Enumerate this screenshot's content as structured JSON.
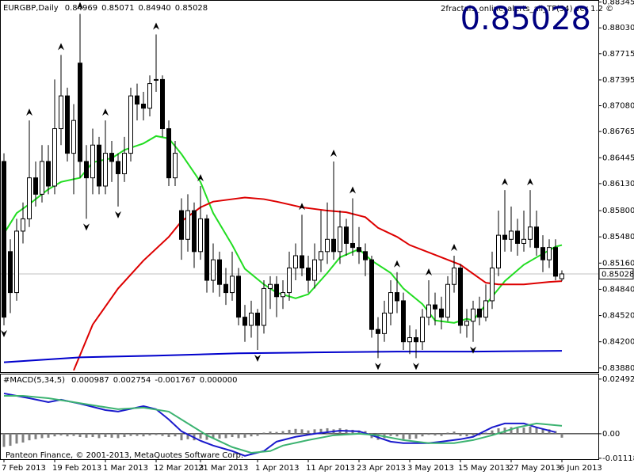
{
  "chart_data": [
    {
      "type": "candlestick",
      "title": "EURGBP,Daily",
      "header_values": [
        "0.84969",
        "0.85071",
        "0.84940",
        "0.85028"
      ],
      "indicator": "2fractals_online_alerts_all_TF(54) ver 1.2 ©",
      "current_price": 0.85028,
      "ylim": [
        0.8383,
        0.8837
      ],
      "yticks": [
        0.88345,
        {
          "value": 0.8803,
          "label": "0.88030"
        },
        0.87715,
        0.87395,
        {
          "value": 0.8708,
          "label": "0.87080"
        },
        0.86765,
        0.86445,
        {
          "value": 0.8613,
          "label": "0.86130"
        },
        {
          "value": 0.858,
          "label": "0.85800"
        },
        {
          "value": 0.8548,
          "label": "0.85480"
        },
        {
          "value": 0.8516,
          "label": "0.85160"
        },
        {
          "value": 0.8484,
          "label": "0.84840"
        },
        {
          "value": 0.8452,
          "label": "0.84520"
        },
        {
          "value": 0.842,
          "label": "0.84200"
        },
        {
          "value": 0.8388,
          "label": "0.83880"
        }
      ],
      "candles": [
        [
          0.864,
          0.865,
          0.844,
          0.845
        ],
        [
          0.853,
          0.8545,
          0.8455,
          0.848
        ],
        [
          0.848,
          0.857,
          0.847,
          0.8555
        ],
        [
          0.8555,
          0.859,
          0.854,
          0.857
        ],
        [
          0.857,
          0.869,
          0.856,
          0.862
        ],
        [
          0.862,
          0.864,
          0.8585,
          0.86
        ],
        [
          0.86,
          0.866,
          0.859,
          0.864
        ],
        [
          0.864,
          0.866,
          0.86,
          0.861
        ],
        [
          0.861,
          0.874,
          0.86,
          0.868
        ],
        [
          0.868,
          0.877,
          0.866,
          0.872
        ],
        [
          0.872,
          0.873,
          0.864,
          0.865
        ],
        [
          0.865,
          0.871,
          0.86,
          0.869
        ],
        [
          0.876,
          0.882,
          0.862,
          0.864
        ],
        [
          0.864,
          0.866,
          0.857,
          0.862
        ],
        [
          0.862,
          0.868,
          0.86,
          0.866
        ],
        [
          0.866,
          0.867,
          0.86,
          0.861
        ],
        [
          0.861,
          0.869,
          0.86,
          0.865
        ],
        [
          0.865,
          0.8665,
          0.8615,
          0.864
        ],
        [
          0.864,
          0.865,
          0.8585,
          0.8625
        ],
        [
          0.8625,
          0.867,
          0.8615,
          0.865
        ],
        [
          0.865,
          0.873,
          0.864,
          0.872
        ],
        [
          0.872,
          0.8735,
          0.869,
          0.871
        ],
        [
          0.871,
          0.8725,
          0.869,
          0.8705
        ],
        [
          0.8705,
          0.8745,
          0.8695,
          0.8735
        ],
        [
          0.874,
          0.8795,
          0.8725,
          0.874
        ],
        [
          0.874,
          0.8745,
          0.867,
          0.868
        ],
        [
          0.868,
          0.869,
          0.861,
          0.862
        ],
        [
          0.862,
          0.8665,
          0.861,
          0.865
        ],
        [
          0.858,
          0.8595,
          0.852,
          0.8545
        ],
        [
          0.8545,
          0.86,
          0.853,
          0.858
        ],
        [
          0.858,
          0.859,
          0.851,
          0.853
        ],
        [
          0.853,
          0.861,
          0.852,
          0.857
        ],
        [
          0.857,
          0.8575,
          0.848,
          0.8495
        ],
        [
          0.8495,
          0.854,
          0.848,
          0.852
        ],
        [
          0.852,
          0.853,
          0.8475,
          0.849
        ],
        [
          0.849,
          0.851,
          0.8465,
          0.848
        ],
        [
          0.848,
          0.853,
          0.847,
          0.85
        ],
        [
          0.85,
          0.851,
          0.844,
          0.845
        ],
        [
          0.845,
          0.8465,
          0.842,
          0.844
        ],
        [
          0.844,
          0.847,
          0.8425,
          0.8455
        ],
        [
          0.8455,
          0.846,
          0.841,
          0.844
        ],
        [
          0.844,
          0.8495,
          0.843,
          0.8485
        ],
        [
          0.8485,
          0.85,
          0.846,
          0.849
        ],
        [
          0.849,
          0.85,
          0.845,
          0.8475
        ],
        [
          0.8475,
          0.8495,
          0.846,
          0.848
        ],
        [
          0.848,
          0.853,
          0.847,
          0.851
        ],
        [
          0.851,
          0.854,
          0.8495,
          0.8525
        ],
        [
          0.8525,
          0.8575,
          0.85,
          0.851
        ],
        [
          0.851,
          0.8525,
          0.848,
          0.8495
        ],
        [
          0.8495,
          0.854,
          0.8485,
          0.852
        ],
        [
          0.852,
          0.858,
          0.8505,
          0.853
        ],
        [
          0.853,
          0.859,
          0.8515,
          0.8545
        ],
        [
          0.8545,
          0.864,
          0.852,
          0.853
        ],
        [
          0.853,
          0.858,
          0.8515,
          0.856
        ],
        [
          0.856,
          0.857,
          0.8525,
          0.854
        ],
        [
          0.854,
          0.8595,
          0.8525,
          0.8535
        ],
        [
          0.8535,
          0.856,
          0.8515,
          0.853
        ],
        [
          0.853,
          0.854,
          0.85,
          0.852
        ],
        [
          0.852,
          0.8525,
          0.8425,
          0.8435
        ],
        [
          0.8435,
          0.845,
          0.84,
          0.843
        ],
        [
          0.843,
          0.847,
          0.842,
          0.8455
        ],
        [
          0.8455,
          0.8495,
          0.844,
          0.848
        ],
        [
          0.848,
          0.8505,
          0.8455,
          0.847
        ],
        [
          0.847,
          0.848,
          0.841,
          0.842
        ],
        [
          0.842,
          0.844,
          0.8405,
          0.8425
        ],
        [
          0.8425,
          0.8435,
          0.84,
          0.842
        ],
        [
          0.842,
          0.846,
          0.841,
          0.845
        ],
        [
          0.845,
          0.8495,
          0.844,
          0.8465
        ],
        [
          0.8465,
          0.848,
          0.844,
          0.846
        ],
        [
          0.846,
          0.8475,
          0.8435,
          0.845
        ],
        [
          0.845,
          0.85,
          0.8445,
          0.849
        ],
        [
          0.849,
          0.8525,
          0.848,
          0.851
        ],
        [
          0.851,
          0.8515,
          0.843,
          0.844
        ],
        [
          0.844,
          0.846,
          0.8425,
          0.8445
        ],
        [
          0.8445,
          0.847,
          0.842,
          0.846
        ],
        [
          0.846,
          0.8475,
          0.844,
          0.845
        ],
        [
          0.845,
          0.849,
          0.8445,
          0.847
        ],
        [
          0.847,
          0.853,
          0.846,
          0.851
        ],
        [
          0.851,
          0.858,
          0.85,
          0.855
        ],
        [
          0.855,
          0.8605,
          0.853,
          0.8545
        ],
        [
          0.8545,
          0.8585,
          0.853,
          0.8555
        ],
        [
          0.8555,
          0.857,
          0.8525,
          0.854
        ],
        [
          0.854,
          0.858,
          0.853,
          0.8545
        ],
        [
          0.8545,
          0.8605,
          0.8535,
          0.856
        ],
        [
          0.856,
          0.858,
          0.8525,
          0.8535
        ],
        [
          0.8535,
          0.855,
          0.8505,
          0.852
        ],
        [
          0.852,
          0.8545,
          0.851,
          0.8535
        ],
        [
          0.8535,
          0.8545,
          0.8495,
          0.85
        ],
        [
          0.84969,
          0.85071,
          0.8494,
          0.85028
        ]
      ],
      "fractals_up": [
        4,
        9,
        12,
        16,
        24,
        31,
        47,
        52,
        55,
        62,
        67,
        71,
        79,
        83
      ],
      "fractals_down": [
        0,
        13,
        18,
        40,
        59,
        65,
        74
      ],
      "series": [
        {
          "color": "#22dd22",
          "x": [
            0,
            2,
            4,
            7,
            9,
            12,
            14,
            17,
            19,
            22,
            24,
            26,
            28,
            31,
            33,
            36,
            38,
            41,
            43,
            46,
            48,
            51,
            53,
            56,
            58,
            61,
            63,
            66,
            68,
            71,
            73,
            74,
            77,
            79,
            82,
            84,
            87,
            88
          ],
          "values": [
            0.8552,
            0.8577,
            0.8588,
            0.8606,
            0.8615,
            0.862,
            0.8639,
            0.8644,
            0.8654,
            0.8662,
            0.8671,
            0.8668,
            0.8649,
            0.8615,
            0.8577,
            0.8538,
            0.8509,
            0.849,
            0.848,
            0.8473,
            0.8478,
            0.8504,
            0.8523,
            0.8533,
            0.8519,
            0.8504,
            0.8485,
            0.8466,
            0.8446,
            0.8443,
            0.8448,
            0.8446,
            0.8475,
            0.8494,
            0.8514,
            0.8523,
            0.8536,
            0.8538
          ]
        },
        {
          "color": "#dd0000",
          "x": [
            11,
            14,
            18,
            22,
            26,
            28,
            31,
            33,
            36,
            38,
            41,
            43,
            47,
            51,
            54,
            57,
            59,
            62,
            64,
            68,
            72,
            76,
            78,
            82,
            86,
            88
          ],
          "values": [
            0.8385,
            0.8441,
            0.8485,
            0.8519,
            0.8548,
            0.8567,
            0.8584,
            0.8591,
            0.8594,
            0.8596,
            0.8594,
            0.8591,
            0.8584,
            0.858,
            0.8578,
            0.8572,
            0.8559,
            0.8548,
            0.8538,
            0.8526,
            0.8514,
            0.8492,
            0.849,
            0.849,
            0.8493,
            0.8494
          ]
        },
        {
          "color": "#0000cc",
          "x": [
            0,
            12,
            24,
            37,
            49,
            62,
            74,
            88
          ],
          "values": [
            0.8395,
            0.8401,
            0.8403,
            0.8406,
            0.8407,
            0.8408,
            0.8408,
            0.8409
          ]
        }
      ]
    },
    {
      "type": "macd",
      "title": "#MACD(5,34,5)",
      "header_values": [
        "0.000987",
        "0.002754",
        "-0.001767",
        "0.000000"
      ],
      "footer": "Panteon Finance, © 2001-2013, MetaQuotes Software Corp.",
      "ylim": [
        -0.0116,
        0.0274
      ],
      "yticks": [
        0.024923,
        {
          "value": 0,
          "label": "0.00"
        },
        -0.01118
      ],
      "histogram": {
        "color": "#808080",
        "values": [
          -0.006,
          -0.0055,
          -0.0045,
          -0.004,
          -0.003,
          -0.0025,
          -0.002,
          -0.0018,
          -0.0012,
          -0.0008,
          -0.0012,
          -0.001,
          -0.0015,
          -0.0018,
          -0.0015,
          -0.002,
          -0.0015,
          -0.0018,
          -0.002,
          -0.0015,
          -0.001,
          -0.001,
          -0.0012,
          -0.0008,
          -0.0006,
          -0.001,
          -0.0015,
          -0.0012,
          -0.003,
          -0.0025,
          -0.003,
          -0.0022,
          -0.0028,
          -0.002,
          -0.0022,
          -0.002,
          -0.0015,
          -0.002,
          -0.0018,
          -0.0012,
          -0.001,
          0.0005,
          0.001,
          0.0008,
          0.0012,
          0.0018,
          0.0022,
          0.002,
          0.0015,
          0.002,
          0.0022,
          0.0025,
          0.002,
          0.0025,
          0.002,
          0.0018,
          0.0015,
          0.0012,
          -0.002,
          -0.0028,
          -0.002,
          -0.001,
          -0.0012,
          -0.0025,
          -0.0025,
          -0.0022,
          -0.0012,
          -0.0005,
          -0.0008,
          -0.001,
          0.0005,
          0.001,
          -0.001,
          -0.0012,
          -0.0008,
          -0.0008,
          0.0005,
          0.0015,
          0.0025,
          0.0028,
          0.003,
          0.0025,
          0.0028,
          0.0032,
          0.0028,
          0.0022,
          0.002,
          0.0012,
          -0.0018
        ]
      },
      "series": [
        {
          "color": "#1a1acc",
          "x": [
            0,
            2,
            4,
            7,
            9,
            12,
            16,
            18,
            22,
            24,
            26,
            28,
            31,
            33,
            36,
            38,
            41,
            43,
            46,
            49,
            53,
            56,
            58,
            61,
            63,
            67,
            69,
            72,
            74,
            77,
            79,
            82,
            84,
            87
          ],
          "values": [
            0.0184,
            0.0173,
            0.0162,
            0.0144,
            0.0155,
            0.0137,
            0.0108,
            0.0101,
            0.0126,
            0.0112,
            0.0065,
            0.0011,
            -0.0032,
            -0.0054,
            -0.0079,
            -0.0101,
            -0.0079,
            -0.0036,
            -0.0014,
            0,
            0.0014,
            0.0011,
            -0.0007,
            -0.0036,
            -0.0043,
            -0.0043,
            -0.0036,
            -0.0025,
            -0.0014,
            0.0029,
            0.0047,
            0.0047,
            0.0029,
            0.0007
          ]
        },
        {
          "color": "#3cb371",
          "x": [
            0,
            3,
            7,
            11,
            14,
            18,
            22,
            26,
            29,
            32,
            36,
            39,
            42,
            44,
            48,
            52,
            56,
            59,
            63,
            67,
            71,
            74,
            77,
            81,
            84,
            88
          ],
          "values": [
            0.0173,
            0.0173,
            0.0162,
            0.0144,
            0.013,
            0.0112,
            0.0119,
            0.0101,
            0.0047,
            -0.0007,
            -0.0061,
            -0.0087,
            -0.0079,
            -0.0054,
            -0.0029,
            -0.0007,
            0,
            -0.0007,
            -0.0029,
            -0.0043,
            -0.0043,
            -0.0029,
            -0.0007,
            0.0029,
            0.0047,
            0.0036
          ]
        }
      ],
      "xticks": [
        {
          "value": 0,
          "label": "7 Feb 2013"
        },
        {
          "value": 8,
          "label": "19 Feb 2013"
        },
        {
          "value": 16,
          "label": "1 Mar 2013"
        },
        {
          "value": 24,
          "label": "12 Mar 2013"
        },
        {
          "value": 31,
          "label": "21 Mar 2013"
        },
        {
          "value": 40,
          "label": "1 Apr 2013"
        },
        {
          "value": 48,
          "label": "11 Apr 2013"
        },
        {
          "value": 56,
          "label": "23 Apr 2013"
        },
        {
          "value": 64,
          "label": "3 May 2013"
        },
        {
          "value": 72,
          "label": "15 May 2013"
        },
        {
          "value": 80,
          "label": "27 May 2013"
        },
        {
          "value": 88,
          "label": "6 Jun 2013"
        }
      ]
    }
  ]
}
